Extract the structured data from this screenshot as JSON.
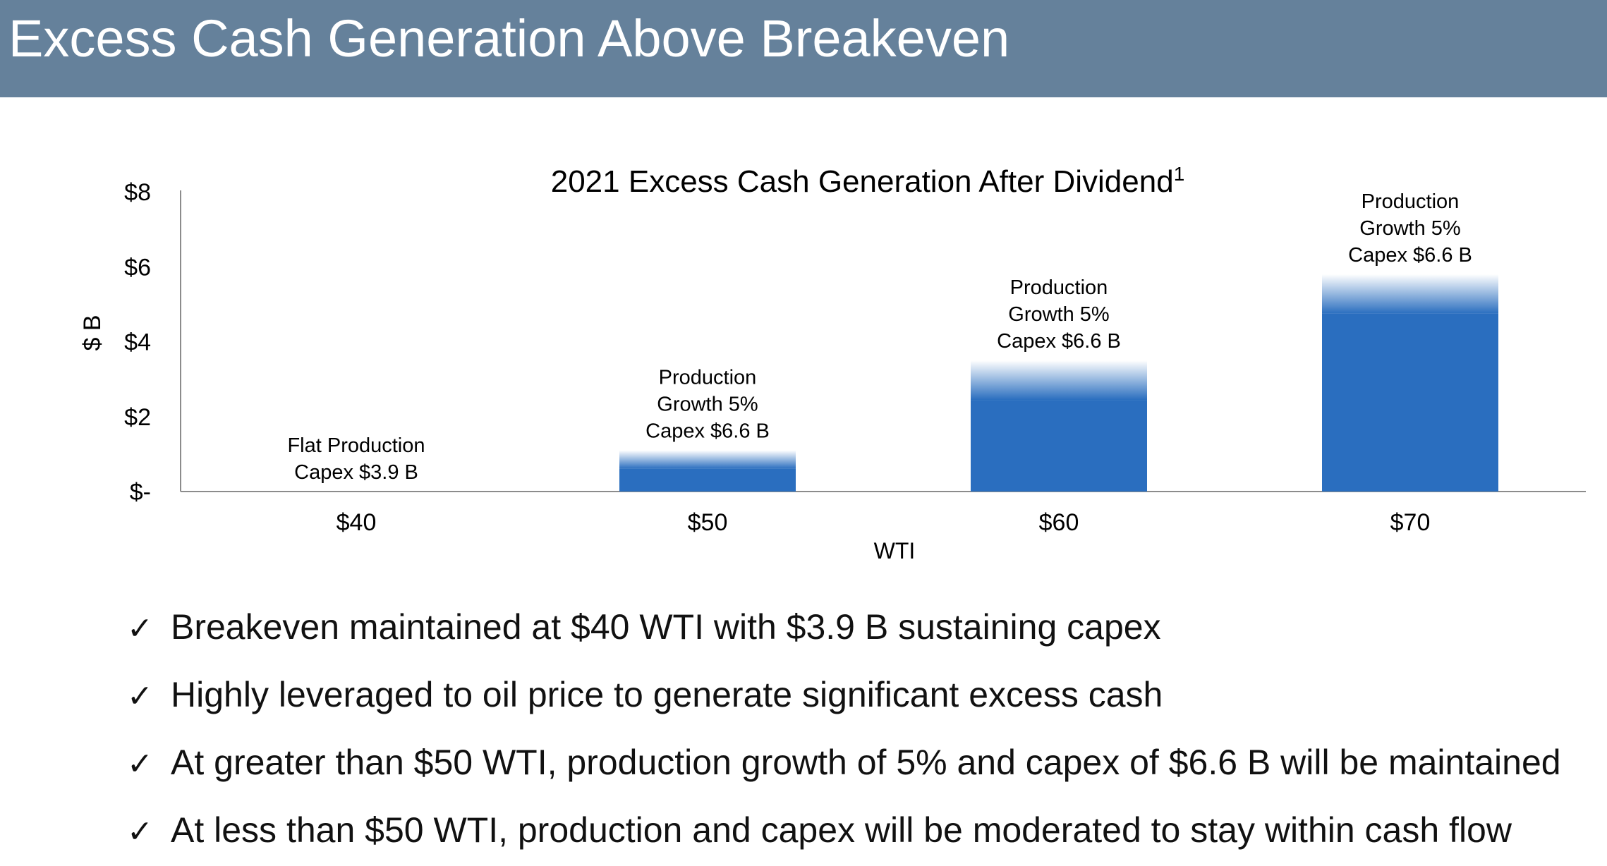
{
  "header": {
    "title": "Excess Cash Generation Above Breakeven",
    "bar_color": "#65819b"
  },
  "chart_data": {
    "type": "bar",
    "title": "2021 Excess Cash Generation After Dividend",
    "title_superscript": "1",
    "xlabel": "WTI",
    "ylabel": "$ B",
    "categories": [
      "$40",
      "$50",
      "$60",
      "$70"
    ],
    "values": [
      0.0,
      1.1,
      3.5,
      5.8
    ],
    "bar_labels": [
      [
        "Flat Production",
        "Capex $3.9 B"
      ],
      [
        "Production",
        "Growth 5%",
        "Capex $6.6 B"
      ],
      [
        "Production",
        "Growth 5%",
        "Capex $6.6 B"
      ],
      [
        "Production",
        "Growth 5%",
        "Capex $6.6 B"
      ]
    ],
    "yticks": [
      0,
      2,
      4,
      6,
      8
    ],
    "ytick_labels": [
      "$-",
      "$2",
      "$4",
      "$6",
      "$8"
    ],
    "ylim": [
      0,
      8
    ],
    "grid": false,
    "bar_color": "#2a6ebf"
  },
  "bullets": [
    {
      "check": "✓",
      "text": "Breakeven maintained at $40 WTI with $3.9 B sustaining capex"
    },
    {
      "check": "✓",
      "text": "Highly leveraged to oil price to generate significant excess cash"
    },
    {
      "check": "✓",
      "text": "At greater than $50 WTI, production growth of 5% and capex of $6.6 B will be maintained"
    },
    {
      "check": "✓",
      "text": "At less than $50 WTI, production and capex will be moderated to stay within cash flow"
    }
  ]
}
